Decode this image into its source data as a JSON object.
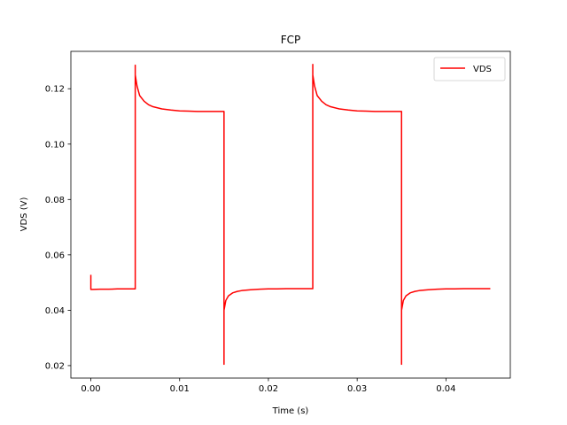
{
  "chart_data": {
    "type": "line",
    "title": "FCP",
    "xlabel": "Time (s)",
    "ylabel": "VDS (V)",
    "xlim": [
      -0.00225,
      0.04725
    ],
    "ylim": [
      0.0155,
      0.1335
    ],
    "xticks": [
      0.0,
      0.01,
      0.02,
      0.03,
      0.04
    ],
    "xtick_labels": [
      "0.00",
      "0.01",
      "0.02",
      "0.03",
      "0.04"
    ],
    "yticks": [
      0.02,
      0.04,
      0.06,
      0.08,
      0.1,
      0.12
    ],
    "ytick_labels": [
      "0.02",
      "0.04",
      "0.06",
      "0.08",
      "0.10",
      "0.12"
    ],
    "grid": false,
    "legend_position": "top-right",
    "series": [
      {
        "name": "VDS",
        "color": "#ff0000",
        "x": [
          0.0,
          0.0,
          0.0002,
          0.001,
          0.002,
          0.003,
          0.004,
          0.005,
          0.005,
          0.005,
          0.0052,
          0.0055,
          0.006,
          0.0065,
          0.007,
          0.008,
          0.009,
          0.01,
          0.011,
          0.012,
          0.013,
          0.014,
          0.015,
          0.015,
          0.015,
          0.0152,
          0.0155,
          0.016,
          0.0165,
          0.017,
          0.018,
          0.019,
          0.02,
          0.021,
          0.022,
          0.023,
          0.024,
          0.025,
          0.025,
          0.025,
          0.0252,
          0.0255,
          0.026,
          0.0265,
          0.027,
          0.028,
          0.029,
          0.03,
          0.031,
          0.032,
          0.033,
          0.034,
          0.035,
          0.035,
          0.035,
          0.0352,
          0.0355,
          0.036,
          0.0365,
          0.037,
          0.038,
          0.039,
          0.04,
          0.041,
          0.042,
          0.043,
          0.044,
          0.045
        ],
        "y": [
          0.0528,
          0.0475,
          0.0475,
          0.0476,
          0.0476,
          0.0477,
          0.0477,
          0.0477,
          0.1285,
          0.125,
          0.121,
          0.1175,
          0.1155,
          0.1142,
          0.1135,
          0.1127,
          0.1123,
          0.112,
          0.1119,
          0.1118,
          0.1118,
          0.1118,
          0.1118,
          0.0205,
          0.04,
          0.0435,
          0.0452,
          0.0463,
          0.0468,
          0.0471,
          0.0474,
          0.0476,
          0.0477,
          0.0477,
          0.0478,
          0.0478,
          0.0478,
          0.0478,
          0.1288,
          0.125,
          0.121,
          0.1175,
          0.1155,
          0.1142,
          0.1135,
          0.1127,
          0.1123,
          0.112,
          0.1119,
          0.1118,
          0.1118,
          0.1118,
          0.1118,
          0.0205,
          0.04,
          0.0435,
          0.0452,
          0.0463,
          0.0468,
          0.0471,
          0.0474,
          0.0476,
          0.0477,
          0.0477,
          0.0478,
          0.0478,
          0.0478,
          0.0478
        ]
      }
    ]
  }
}
